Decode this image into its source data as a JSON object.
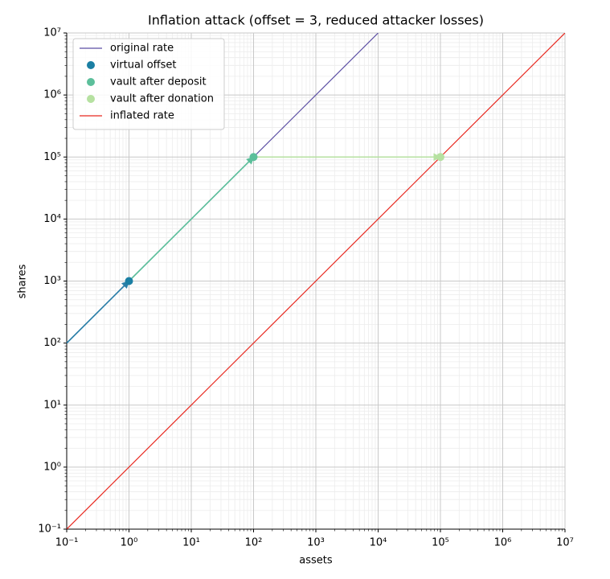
{
  "chart_data": {
    "type": "scatter",
    "title": "Inflation attack (offset = 3, reduced attacker losses)",
    "x_label": "assets",
    "y_label": "shares",
    "log_x": true,
    "log_y": true,
    "grid": true,
    "minor_grid": true,
    "legend": "upper left",
    "xlim": [
      0.1,
      10000000
    ],
    "ylim": [
      0.1,
      10000000
    ],
    "xticks": [
      {
        "value": 0.1,
        "label": "10⁻¹"
      },
      {
        "value": 1,
        "label": "10⁰"
      },
      {
        "value": 10,
        "label": "10¹"
      },
      {
        "value": 100,
        "label": "10²"
      },
      {
        "value": 1000,
        "label": "10³"
      },
      {
        "value": 10000,
        "label": "10⁴"
      },
      {
        "value": 100000,
        "label": "10⁵"
      },
      {
        "value": 1000000,
        "label": "10⁶"
      },
      {
        "value": 10000000,
        "label": "10⁷"
      }
    ],
    "yticks": [
      {
        "value": 0.1,
        "label": "10⁻¹"
      },
      {
        "value": 1,
        "label": "10⁰"
      },
      {
        "value": 10,
        "label": "10¹"
      },
      {
        "value": 100,
        "label": "10²"
      },
      {
        "value": 1000,
        "label": "10³"
      },
      {
        "value": 10000,
        "label": "10⁴"
      },
      {
        "value": 100000,
        "label": "10⁵"
      },
      {
        "value": 1000000,
        "label": "10⁶"
      },
      {
        "value": 10000000,
        "label": "10⁷"
      }
    ],
    "series": [
      {
        "name": "original rate",
        "mark": "line",
        "color": "#5b4ea3",
        "x": [
          0.1,
          10000
        ],
        "values": [
          100,
          10000000
        ]
      },
      {
        "name": "virtual offset",
        "mark": "point",
        "color": "#1b7fa3",
        "x": [
          1
        ],
        "values": [
          1000
        ]
      },
      {
        "name": "vault after deposit",
        "mark": "point",
        "color": "#5cbf9b",
        "x": [
          100
        ],
        "values": [
          100000
        ]
      },
      {
        "name": "vault after donation",
        "mark": "point",
        "color": "#b6e1a1",
        "x": [
          100000
        ],
        "values": [
          100000
        ]
      },
      {
        "name": "inflated rate",
        "mark": "line",
        "color": "#e8271e",
        "x": [
          0.1,
          10000000
        ],
        "values": [
          0.1,
          10000000
        ]
      }
    ],
    "arrows": [
      {
        "color": "#2a7fa8",
        "x": [
          0.1,
          1
        ],
        "values": [
          100,
          1000
        ]
      },
      {
        "color": "#5cbf9b",
        "x": [
          1,
          100
        ],
        "values": [
          1000,
          100000
        ]
      },
      {
        "color": "#b6e1a1",
        "x": [
          100,
          100000
        ],
        "values": [
          100000,
          100000
        ]
      }
    ]
  }
}
